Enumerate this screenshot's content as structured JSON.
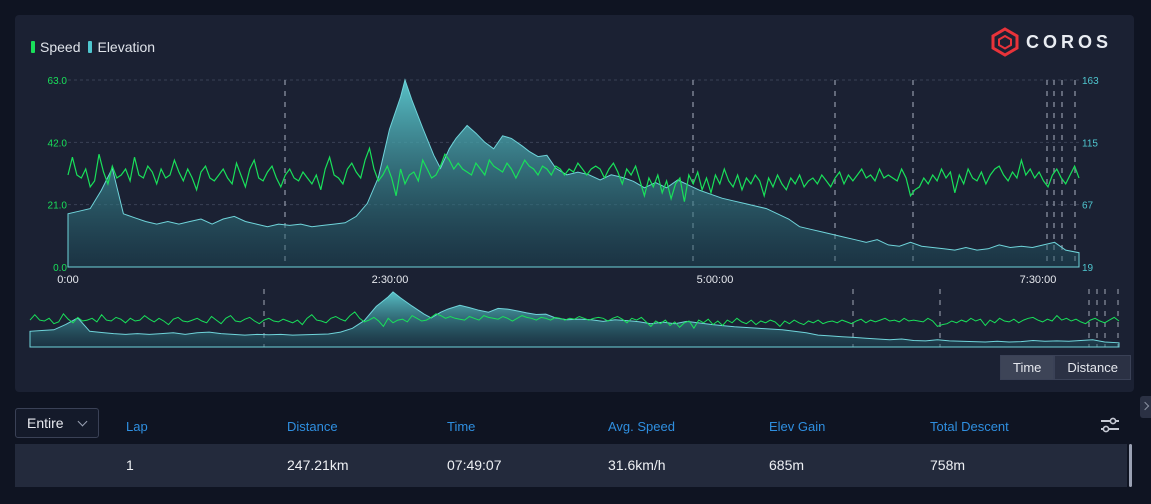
{
  "legend": [
    {
      "label": "Speed",
      "color": "#19e05a"
    },
    {
      "label": "Elevation",
      "color": "#4fc6cf"
    }
  ],
  "brand": {
    "name": "COROS",
    "logo_color": "#e8333a"
  },
  "chart_data": {
    "type": "line",
    "left_axis": {
      "ticks": [
        "63.0",
        "42.0",
        "21.0",
        "0.0"
      ],
      "range": [
        0,
        63
      ]
    },
    "right_axis": {
      "ticks": [
        "163",
        "115",
        "67",
        "19"
      ],
      "range": [
        19,
        163
      ]
    },
    "x_ticks": [
      "0:00",
      "2:30:00",
      "5:00:00",
      "7:30:00"
    ],
    "series": [
      {
        "name": "Speed",
        "color": "#19e05a",
        "points": [
          [
            0,
            31
          ],
          [
            2,
            37
          ],
          [
            4,
            31
          ],
          [
            6,
            30
          ],
          [
            8,
            33
          ],
          [
            10,
            27
          ],
          [
            12,
            29
          ],
          [
            14,
            38
          ],
          [
            16,
            32
          ],
          [
            18,
            28
          ],
          [
            20,
            34
          ],
          [
            22,
            30
          ],
          [
            24,
            31
          ],
          [
            26,
            33
          ],
          [
            28,
            29
          ],
          [
            30,
            37
          ],
          [
            32,
            31
          ],
          [
            34,
            30
          ],
          [
            36,
            34
          ],
          [
            38,
            32
          ],
          [
            40,
            28
          ],
          [
            42,
            33
          ],
          [
            44,
            30
          ],
          [
            46,
            31
          ],
          [
            48,
            36
          ],
          [
            50,
            32
          ],
          [
            52,
            29
          ],
          [
            54,
            33
          ],
          [
            56,
            30
          ],
          [
            58,
            26
          ],
          [
            60,
            32
          ],
          [
            62,
            34
          ],
          [
            64,
            30
          ],
          [
            66,
            29
          ],
          [
            68,
            31
          ],
          [
            70,
            33
          ],
          [
            72,
            30
          ],
          [
            74,
            28
          ],
          [
            76,
            35
          ],
          [
            78,
            31
          ],
          [
            80,
            27
          ],
          [
            82,
            33
          ],
          [
            84,
            36
          ],
          [
            86,
            30
          ],
          [
            88,
            29
          ],
          [
            90,
            32
          ],
          [
            92,
            34
          ],
          [
            94,
            30
          ],
          [
            96,
            27
          ],
          [
            98,
            31
          ],
          [
            100,
            33
          ],
          [
            102,
            30
          ],
          [
            104,
            29
          ],
          [
            106,
            32
          ],
          [
            108,
            30
          ],
          [
            110,
            28
          ],
          [
            112,
            31
          ],
          [
            114,
            26
          ],
          [
            116,
            33
          ],
          [
            118,
            37
          ],
          [
            120,
            31
          ],
          [
            122,
            30
          ],
          [
            124,
            28
          ],
          [
            126,
            33
          ],
          [
            128,
            35
          ],
          [
            130,
            32
          ],
          [
            132,
            30
          ],
          [
            134,
            36
          ],
          [
            136,
            40
          ],
          [
            138,
            33
          ],
          [
            140,
            29
          ],
          [
            142,
            31
          ],
          [
            144,
            34
          ],
          [
            146,
            30
          ],
          [
            148,
            24
          ],
          [
            150,
            33
          ],
          [
            152,
            28
          ],
          [
            154,
            31
          ],
          [
            156,
            32
          ],
          [
            158,
            29
          ],
          [
            160,
            36
          ],
          [
            162,
            33
          ],
          [
            164,
            30
          ],
          [
            166,
            31
          ],
          [
            168,
            34
          ],
          [
            170,
            38
          ],
          [
            172,
            36
          ],
          [
            174,
            33
          ],
          [
            176,
            35
          ],
          [
            178,
            33
          ],
          [
            180,
            32
          ],
          [
            182,
            31
          ],
          [
            184,
            35
          ],
          [
            186,
            33
          ],
          [
            188,
            31
          ],
          [
            190,
            36
          ],
          [
            192,
            34
          ],
          [
            194,
            33
          ],
          [
            196,
            32
          ],
          [
            198,
            35
          ],
          [
            200,
            33
          ],
          [
            202,
            30
          ],
          [
            204,
            33
          ],
          [
            206,
            36
          ],
          [
            208,
            34
          ],
          [
            210,
            33
          ],
          [
            212,
            31
          ],
          [
            214,
            34
          ],
          [
            216,
            33
          ],
          [
            218,
            31
          ],
          [
            220,
            34
          ],
          [
            222,
            33
          ],
          [
            224,
            31
          ],
          [
            226,
            33
          ],
          [
            228,
            32
          ],
          [
            230,
            35
          ],
          [
            232,
            33
          ],
          [
            234,
            31
          ],
          [
            236,
            33
          ],
          [
            238,
            34
          ],
          [
            240,
            33
          ],
          [
            242,
            30
          ],
          [
            244,
            33
          ],
          [
            246,
            35
          ],
          [
            248,
            32
          ],
          [
            250,
            28
          ],
          [
            252,
            33
          ],
          [
            254,
            31
          ],
          [
            256,
            34
          ],
          [
            258,
            29
          ],
          [
            260,
            24
          ],
          [
            262,
            30
          ],
          [
            264,
            27
          ],
          [
            266,
            31
          ],
          [
            268,
            25
          ],
          [
            270,
            29
          ],
          [
            272,
            23
          ],
          [
            274,
            28
          ],
          [
            276,
            30
          ],
          [
            278,
            22
          ],
          [
            280,
            31
          ],
          [
            282,
            28
          ],
          [
            284,
            32
          ],
          [
            286,
            26
          ],
          [
            288,
            30
          ],
          [
            290,
            25
          ],
          [
            292,
            31
          ],
          [
            294,
            28
          ],
          [
            296,
            33
          ],
          [
            298,
            29
          ],
          [
            300,
            27
          ],
          [
            302,
            31
          ],
          [
            304,
            26
          ],
          [
            306,
            30
          ],
          [
            308,
            28
          ],
          [
            310,
            31
          ],
          [
            312,
            29
          ],
          [
            314,
            24
          ],
          [
            316,
            30
          ],
          [
            318,
            27
          ],
          [
            320,
            31
          ],
          [
            322,
            28
          ],
          [
            324,
            26
          ],
          [
            326,
            30
          ],
          [
            328,
            28
          ],
          [
            330,
            31
          ],
          [
            332,
            27
          ],
          [
            334,
            29
          ],
          [
            336,
            30
          ],
          [
            338,
            28
          ],
          [
            340,
            31
          ],
          [
            342,
            29
          ],
          [
            344,
            27
          ],
          [
            346,
            30
          ],
          [
            348,
            32
          ],
          [
            350,
            28
          ],
          [
            352,
            31
          ],
          [
            354,
            29
          ],
          [
            356,
            31
          ],
          [
            358,
            33
          ],
          [
            360,
            30
          ],
          [
            362,
            31
          ],
          [
            364,
            29
          ],
          [
            366,
            33
          ],
          [
            368,
            30
          ],
          [
            370,
            31
          ],
          [
            372,
            30
          ],
          [
            374,
            29
          ],
          [
            376,
            33
          ],
          [
            378,
            30
          ],
          [
            380,
            24
          ],
          [
            382,
            26
          ],
          [
            384,
            27
          ],
          [
            386,
            30
          ],
          [
            388,
            28
          ],
          [
            390,
            31
          ],
          [
            392,
            29
          ],
          [
            394,
            33
          ],
          [
            396,
            30
          ],
          [
            398,
            32
          ],
          [
            400,
            25
          ],
          [
            402,
            31
          ],
          [
            404,
            28
          ],
          [
            406,
            33
          ],
          [
            408,
            30
          ],
          [
            410,
            29
          ],
          [
            412,
            32
          ],
          [
            414,
            28
          ],
          [
            416,
            31
          ],
          [
            418,
            33
          ],
          [
            420,
            34
          ],
          [
            422,
            31
          ],
          [
            424,
            29
          ],
          [
            426,
            32
          ],
          [
            428,
            30
          ],
          [
            430,
            36
          ],
          [
            432,
            31
          ],
          [
            434,
            33
          ],
          [
            436,
            30
          ],
          [
            438,
            32
          ],
          [
            440,
            29
          ],
          [
            442,
            27
          ],
          [
            444,
            31
          ],
          [
            446,
            33
          ],
          [
            448,
            30
          ],
          [
            450,
            28
          ],
          [
            452,
            31
          ],
          [
            454,
            34
          ],
          [
            456,
            30
          ]
        ]
      },
      {
        "name": "Elevation",
        "color": "#4fc6cf",
        "points": [
          [
            0,
            60
          ],
          [
            5,
            62
          ],
          [
            10,
            64
          ],
          [
            15,
            78
          ],
          [
            20,
            95
          ],
          [
            25,
            60
          ],
          [
            30,
            57
          ],
          [
            35,
            54
          ],
          [
            40,
            52
          ],
          [
            45,
            54
          ],
          [
            50,
            52
          ],
          [
            55,
            54
          ],
          [
            60,
            56
          ],
          [
            65,
            52
          ],
          [
            70,
            56
          ],
          [
            75,
            58
          ],
          [
            80,
            54
          ],
          [
            85,
            52
          ],
          [
            90,
            50
          ],
          [
            95,
            52
          ],
          [
            100,
            51
          ],
          [
            105,
            52
          ],
          [
            110,
            50
          ],
          [
            115,
            51
          ],
          [
            120,
            52
          ],
          [
            125,
            53
          ],
          [
            130,
            58
          ],
          [
            135,
            68
          ],
          [
            140,
            88
          ],
          [
            145,
            125
          ],
          [
            150,
            150
          ],
          [
            152,
            163
          ],
          [
            155,
            148
          ],
          [
            160,
            126
          ],
          [
            165,
            105
          ],
          [
            168,
            95
          ],
          [
            172,
            110
          ],
          [
            175,
            118
          ],
          [
            180,
            128
          ],
          [
            184,
            122
          ],
          [
            188,
            115
          ],
          [
            192,
            110
          ],
          [
            196,
            120
          ],
          [
            200,
            118
          ],
          [
            205,
            112
          ],
          [
            208,
            108
          ],
          [
            212,
            104
          ],
          [
            216,
            105
          ],
          [
            220,
            95
          ],
          [
            225,
            90
          ],
          [
            230,
            92
          ],
          [
            235,
            90
          ],
          [
            240,
            86
          ],
          [
            245,
            90
          ],
          [
            250,
            88
          ],
          [
            255,
            85
          ],
          [
            260,
            80
          ],
          [
            265,
            84
          ],
          [
            270,
            80
          ],
          [
            275,
            86
          ],
          [
            280,
            82
          ],
          [
            285,
            78
          ],
          [
            290,
            75
          ],
          [
            295,
            72
          ],
          [
            300,
            70
          ],
          [
            305,
            68
          ],
          [
            310,
            66
          ],
          [
            315,
            64
          ],
          [
            320,
            60
          ],
          [
            325,
            56
          ],
          [
            330,
            50
          ],
          [
            335,
            48
          ],
          [
            340,
            46
          ],
          [
            345,
            44
          ],
          [
            350,
            42
          ],
          [
            355,
            40
          ],
          [
            360,
            38
          ],
          [
            365,
            40
          ],
          [
            370,
            36
          ],
          [
            375,
            35
          ],
          [
            380,
            38
          ],
          [
            385,
            35
          ],
          [
            390,
            34
          ],
          [
            395,
            33
          ],
          [
            400,
            32
          ],
          [
            405,
            34
          ],
          [
            410,
            32
          ],
          [
            415,
            33
          ],
          [
            420,
            36
          ],
          [
            425,
            34
          ],
          [
            430,
            35
          ],
          [
            435,
            34
          ],
          [
            440,
            36
          ],
          [
            445,
            38
          ],
          [
            450,
            32
          ],
          [
            456,
            30
          ]
        ]
      }
    ]
  },
  "toggle": {
    "time": "Time",
    "distance": "Distance"
  },
  "table": {
    "selector": "Entire",
    "headers": [
      "Lap",
      "Distance",
      "Time",
      "Avg. Speed",
      "Elev Gain",
      "Total Descent"
    ],
    "rows": [
      [
        "1",
        "247.21km",
        "07:49:07",
        "31.6km/h",
        "685m",
        "758m"
      ]
    ]
  }
}
